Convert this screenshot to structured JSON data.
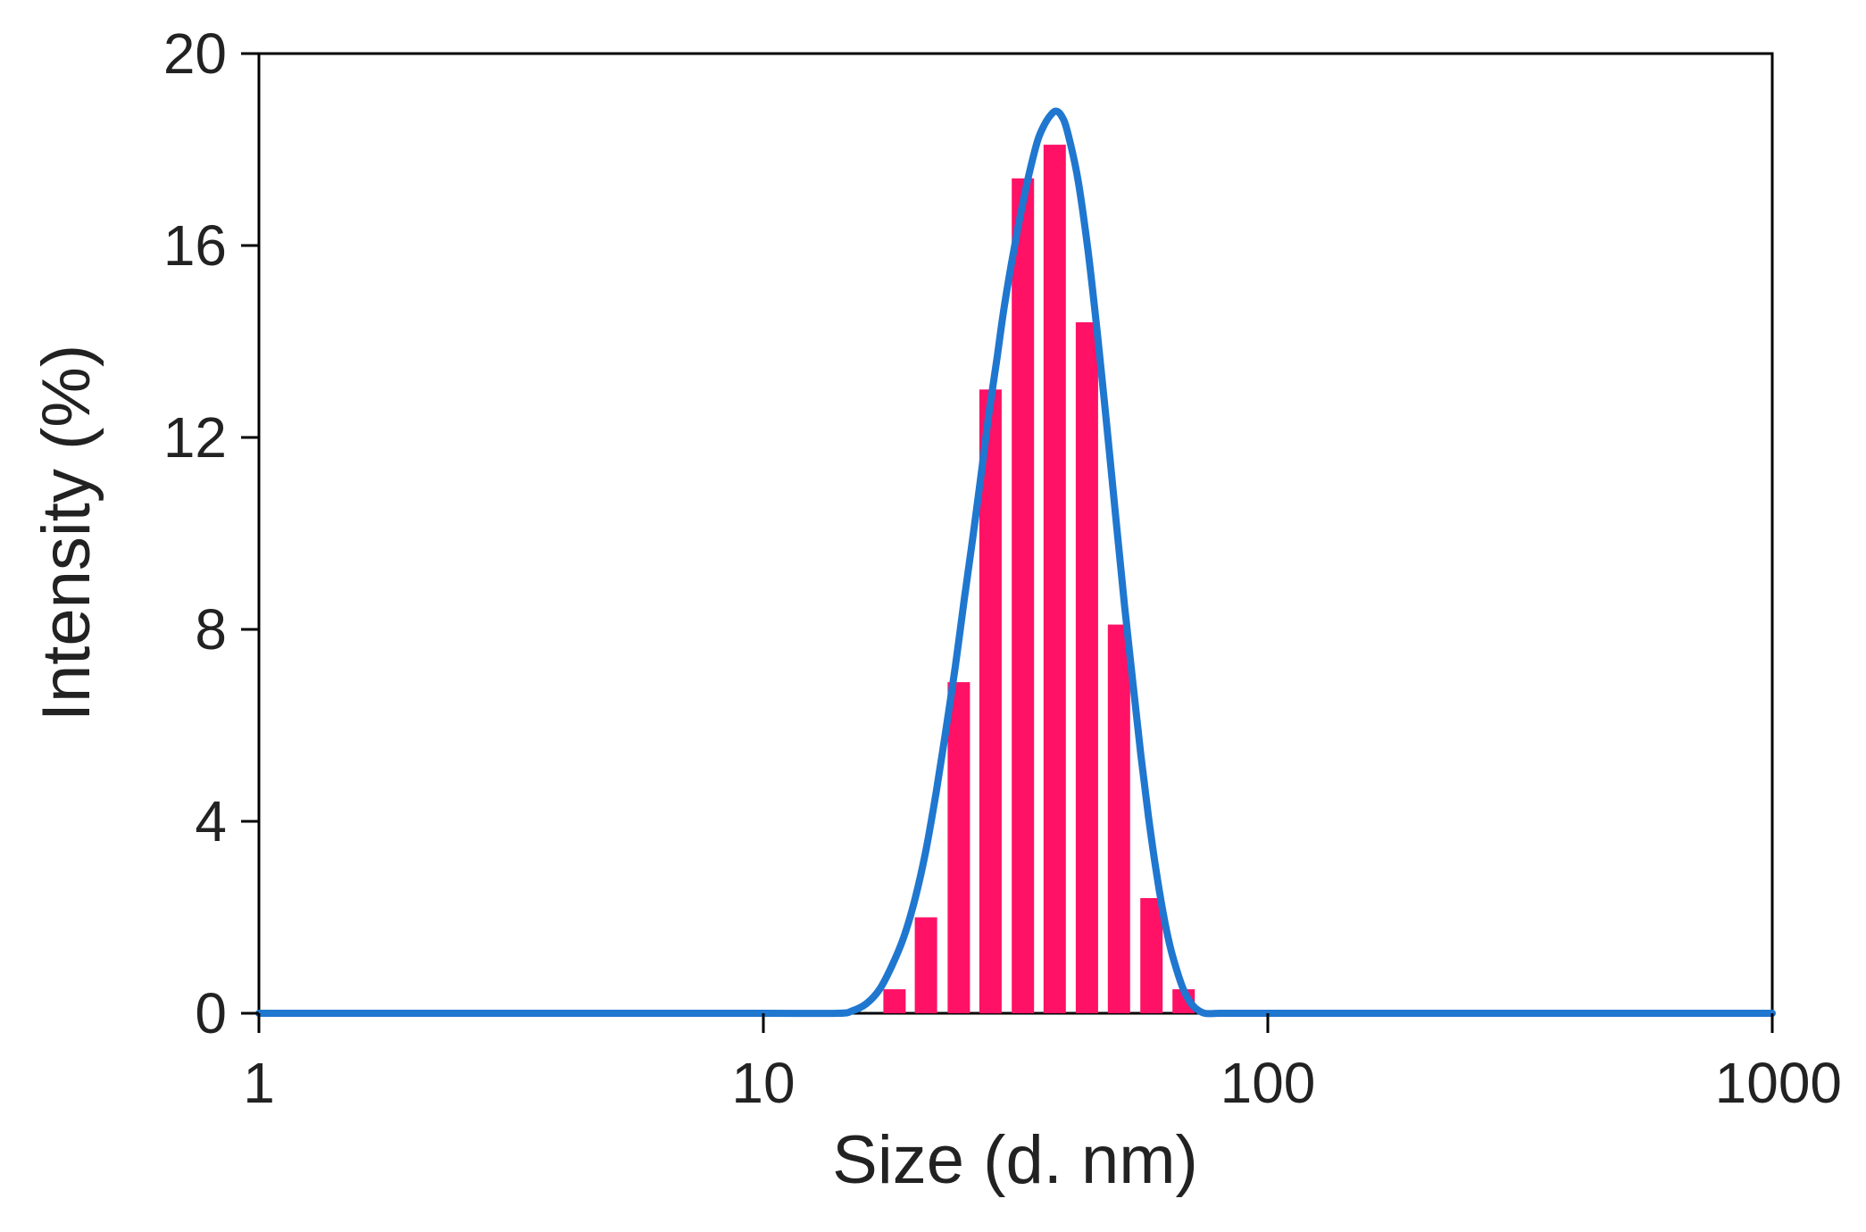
{
  "chart_data": {
    "type": "bar",
    "xlabel": "Size (d. nm)",
    "ylabel": "Intensity (%)",
    "x_scale": "log",
    "xlim": [
      1,
      1000
    ],
    "ylim": [
      0,
      20
    ],
    "x_ticks": [
      "1",
      "10",
      "100",
      "1000"
    ],
    "y_ticks": [
      "0",
      "4",
      "8",
      "12",
      "16",
      "20"
    ],
    "grid": false,
    "legend": "none",
    "bar_color": "#ff1166",
    "line_color": "#1f77d0",
    "bars": {
      "x": [
        18.2,
        21.0,
        24.4,
        28.2,
        32.7,
        37.8,
        43.8,
        50.7,
        58.8,
        68.1
      ],
      "values": [
        0.5,
        2.0,
        6.9,
        13.0,
        17.4,
        18.1,
        14.4,
        8.1,
        2.4,
        0.5
      ]
    },
    "curve": {
      "x": [
        1,
        5,
        10,
        14,
        15,
        16,
        17,
        18,
        19,
        20,
        21,
        22,
        23,
        24,
        25,
        26,
        27,
        28,
        29,
        30,
        31,
        32,
        33,
        34,
        35,
        36,
        37,
        38,
        39,
        40,
        42,
        44,
        46,
        48,
        50,
        52,
        54,
        56,
        58,
        60,
        62,
        64,
        66,
        68,
        70,
        72,
        75,
        80,
        85,
        100,
        1000
      ],
      "y": [
        0,
        0,
        0,
        0,
        0.05,
        0.2,
        0.5,
        1.0,
        1.6,
        2.4,
        3.4,
        4.6,
        5.9,
        7.2,
        8.6,
        9.9,
        11.2,
        12.5,
        13.6,
        14.7,
        15.6,
        16.4,
        17.1,
        17.7,
        18.2,
        18.5,
        18.7,
        18.8,
        18.7,
        18.4,
        17.4,
        15.9,
        14.1,
        12.2,
        10.3,
        8.5,
        6.9,
        5.4,
        4.1,
        3.0,
        2.1,
        1.4,
        0.9,
        0.5,
        0.25,
        0.1,
        0,
        0,
        0,
        0,
        0
      ]
    }
  }
}
